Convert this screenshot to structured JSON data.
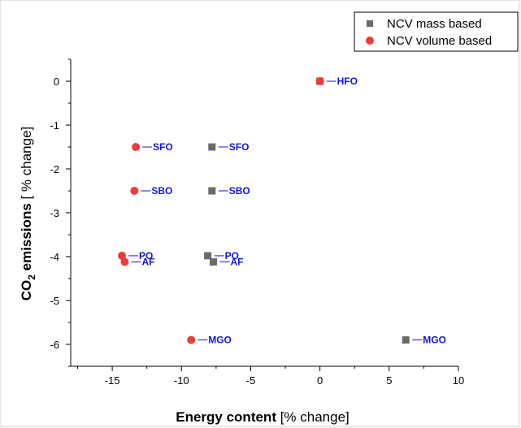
{
  "chart_data": {
    "type": "scatter",
    "xlabel_bold": "Energy content",
    "xlabel_rest": " [% change]",
    "ylabel_bold_a": "CO",
    "ylabel_sub": "2",
    "ylabel_bold_b": " emissions",
    "ylabel_rest": " [ % change]",
    "xlim": [
      -18,
      10
    ],
    "ylim": [
      -6.5,
      0.5
    ],
    "xticks": [
      -15,
      -10,
      -5,
      0,
      5,
      10
    ],
    "yticks": [
      0,
      -1,
      -2,
      -3,
      -4,
      -5,
      -6
    ],
    "legend_position": "top-right",
    "label_color": "#1515d6",
    "series": [
      {
        "name": "NCV mass based",
        "marker": "square",
        "color": "#6b6b6b",
        "points": [
          {
            "x": -7.8,
            "y": -1.5,
            "label": "SFO"
          },
          {
            "x": -7.8,
            "y": -2.5,
            "label": "SBO"
          },
          {
            "x": -8.1,
            "y": -3.98,
            "label": "PO"
          },
          {
            "x": -7.7,
            "y": -4.12,
            "label": "AF"
          },
          {
            "x": 6.2,
            "y": -5.9,
            "label": "MGO"
          },
          {
            "x": 0.0,
            "y": 0.0,
            "label": ""
          }
        ]
      },
      {
        "name": "NCV volume based",
        "marker": "circle",
        "color": "#ee3b3b",
        "points": [
          {
            "x": 0.0,
            "y": 0.0,
            "label": "HFO"
          },
          {
            "x": -13.3,
            "y": -1.5,
            "label": "SFO"
          },
          {
            "x": -13.4,
            "y": -2.5,
            "label": "SBO"
          },
          {
            "x": -14.3,
            "y": -3.98,
            "label": "PO"
          },
          {
            "x": -14.1,
            "y": -4.12,
            "label": "AF"
          },
          {
            "x": -9.3,
            "y": -5.9,
            "label": "MGO"
          }
        ]
      }
    ]
  }
}
